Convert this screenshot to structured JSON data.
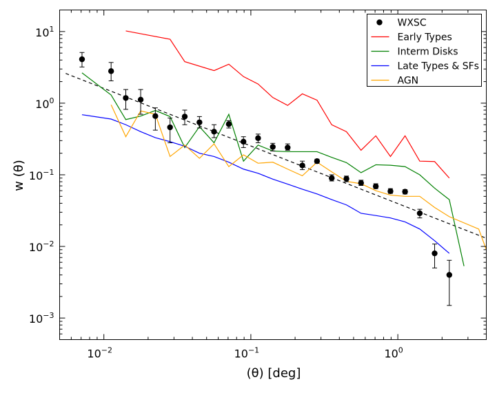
{
  "chart_data": {
    "type": "scatter",
    "title": "",
    "xlabel": "(θ) [deg]",
    "ylabel": "w (θ)",
    "xscale": "log",
    "yscale": "log",
    "xlim": [
      0.005,
      4.0
    ],
    "ylim": [
      0.0005,
      20
    ],
    "grid": false,
    "legend_position": "top-right",
    "x_ticks": [
      {
        "value": 0.01,
        "base": "10",
        "exp": "−2"
      },
      {
        "value": 0.1,
        "base": "10",
        "exp": "−1"
      },
      {
        "value": 1,
        "base": "10",
        "exp": "0"
      }
    ],
    "y_ticks": [
      {
        "value": 0.001,
        "base": "10",
        "exp": "−3"
      },
      {
        "value": 0.01,
        "base": "10",
        "exp": "−2"
      },
      {
        "value": 0.1,
        "base": "10",
        "exp": "−1"
      },
      {
        "value": 1,
        "base": "10",
        "exp": "0"
      },
      {
        "value": 10,
        "base": "10",
        "exp": "1"
      }
    ],
    "points": {
      "name": "WXSC",
      "color": "#000000",
      "data": [
        {
          "x": 0.0071,
          "y": 4.1,
          "lo": 3.2,
          "hi": 5.1
        },
        {
          "x": 0.0112,
          "y": 2.8,
          "lo": 2.05,
          "hi": 3.7
        },
        {
          "x": 0.0141,
          "y": 1.18,
          "lo": 0.82,
          "hi": 1.55
        },
        {
          "x": 0.0178,
          "y": 1.12,
          "lo": 0.7,
          "hi": 1.55
        },
        {
          "x": 0.0224,
          "y": 0.66,
          "lo": 0.42,
          "hi": 0.86
        },
        {
          "x": 0.0282,
          "y": 0.46,
          "lo": 0.28,
          "hi": 0.62
        },
        {
          "x": 0.0355,
          "y": 0.65,
          "lo": 0.5,
          "hi": 0.8
        },
        {
          "x": 0.0447,
          "y": 0.54,
          "lo": 0.45,
          "hi": 0.65
        },
        {
          "x": 0.0562,
          "y": 0.4,
          "lo": 0.33,
          "hi": 0.5
        },
        {
          "x": 0.0708,
          "y": 0.51,
          "lo": 0.45,
          "hi": 0.57
        },
        {
          "x": 0.0891,
          "y": 0.29,
          "lo": 0.24,
          "hi": 0.34
        },
        {
          "x": 0.112,
          "y": 0.325,
          "lo": 0.28,
          "hi": 0.37
        },
        {
          "x": 0.141,
          "y": 0.245,
          "lo": 0.215,
          "hi": 0.275
        },
        {
          "x": 0.178,
          "y": 0.24,
          "lo": 0.22,
          "hi": 0.27
        },
        {
          "x": 0.224,
          "y": 0.135,
          "lo": 0.118,
          "hi": 0.155
        },
        {
          "x": 0.282,
          "y": 0.155,
          "lo": 0.145,
          "hi": 0.165
        },
        {
          "x": 0.355,
          "y": 0.09,
          "lo": 0.082,
          "hi": 0.1
        },
        {
          "x": 0.447,
          "y": 0.088,
          "lo": 0.08,
          "hi": 0.096
        },
        {
          "x": 0.562,
          "y": 0.077,
          "lo": 0.071,
          "hi": 0.084
        },
        {
          "x": 0.708,
          "y": 0.069,
          "lo": 0.064,
          "hi": 0.075
        },
        {
          "x": 0.891,
          "y": 0.059,
          "lo": 0.055,
          "hi": 0.064
        },
        {
          "x": 1.12,
          "y": 0.058,
          "lo": 0.054,
          "hi": 0.062
        },
        {
          "x": 1.41,
          "y": 0.029,
          "lo": 0.025,
          "hi": 0.033
        },
        {
          "x": 1.78,
          "y": 0.008,
          "lo": 0.005,
          "hi": 0.0108
        },
        {
          "x": 2.24,
          "y": 0.004,
          "lo": 0.0015,
          "hi": 0.0064
        }
      ]
    },
    "series": [
      {
        "name": "Early Types",
        "color": "#ff0000",
        "x": [
          0.0141,
          0.0282,
          0.0355,
          0.0562,
          0.0708,
          0.0891,
          0.112,
          0.141,
          0.178,
          0.224,
          0.282,
          0.355,
          0.447,
          0.562,
          0.708,
          0.891,
          1.12,
          1.41,
          1.78,
          2.24
        ],
        "y": [
          10.2,
          7.8,
          3.8,
          2.85,
          3.5,
          2.35,
          1.85,
          1.2,
          0.93,
          1.35,
          1.1,
          0.5,
          0.4,
          0.22,
          0.35,
          0.18,
          0.35,
          0.155,
          0.153,
          0.09
        ]
      },
      {
        "name": "Interm Disks",
        "color": "#008000",
        "x": [
          0.0071,
          0.0112,
          0.0141,
          0.0178,
          0.0224,
          0.0282,
          0.0355,
          0.0447,
          0.0562,
          0.0708,
          0.0891,
          0.112,
          0.141,
          0.178,
          0.224,
          0.282,
          0.355,
          0.447,
          0.562,
          0.708,
          0.891,
          1.12,
          1.41,
          1.78,
          2.24,
          2.82
        ],
        "y": [
          2.65,
          1.3,
          0.59,
          0.66,
          0.79,
          0.65,
          0.24,
          0.47,
          0.28,
          0.7,
          0.155,
          0.26,
          0.215,
          0.21,
          0.21,
          0.21,
          0.175,
          0.148,
          0.107,
          0.138,
          0.136,
          0.13,
          0.1,
          0.065,
          0.045,
          0.0053
        ]
      },
      {
        "name": "Late Types & SFs",
        "color": "#0000ff",
        "x": [
          0.0071,
          0.0112,
          0.0141,
          0.0178,
          0.0224,
          0.0282,
          0.0355,
          0.0447,
          0.0562,
          0.0708,
          0.0891,
          0.112,
          0.141,
          0.178,
          0.224,
          0.282,
          0.355,
          0.447,
          0.562,
          0.708,
          0.891,
          1.12,
          1.41,
          1.78,
          2.24
        ],
        "y": [
          0.69,
          0.6,
          0.5,
          0.4,
          0.33,
          0.29,
          0.25,
          0.2,
          0.18,
          0.15,
          0.12,
          0.105,
          0.087,
          0.074,
          0.063,
          0.054,
          0.045,
          0.038,
          0.029,
          0.027,
          0.025,
          0.022,
          0.0175,
          0.012,
          0.008
        ]
      },
      {
        "name": "AGN",
        "color": "#ffa500",
        "x": [
          0.0112,
          0.0141,
          0.0178,
          0.0224,
          0.0282,
          0.0355,
          0.0447,
          0.0562,
          0.0708,
          0.0891,
          0.112,
          0.141,
          0.178,
          0.224,
          0.282,
          0.355,
          0.447,
          0.562,
          0.708,
          0.891,
          1.12,
          1.41,
          1.78,
          2.24,
          3.55,
          4.0
        ],
        "y": [
          0.95,
          0.34,
          0.78,
          0.7,
          0.18,
          0.26,
          0.17,
          0.27,
          0.13,
          0.19,
          0.145,
          0.15,
          0.12,
          0.097,
          0.15,
          0.11,
          0.081,
          0.075,
          0.06,
          0.052,
          0.05,
          0.05,
          0.035,
          0.026,
          0.0175,
          0.009
        ]
      }
    ],
    "fit_line": {
      "style": "dashed",
      "color": "#000000",
      "x": [
        0.0055,
        4.0
      ],
      "y": [
        2.6,
        0.013
      ]
    }
  }
}
